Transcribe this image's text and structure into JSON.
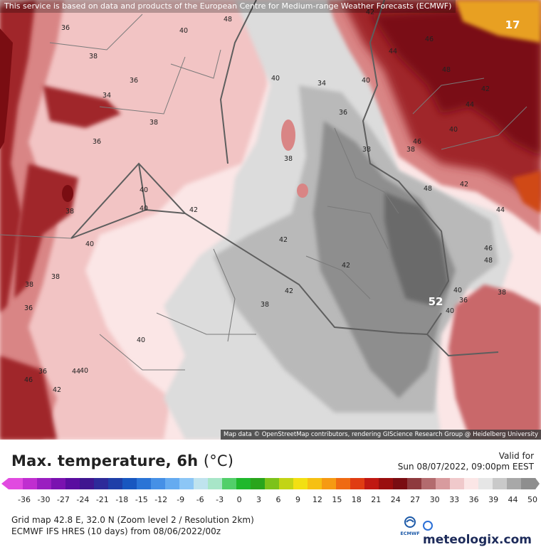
{
  "attribution_top": "This service is based on data and products of the European Centre for Medium-range Weather Forecasts (ECMWF)",
  "attribution_bottom": "Map data © OpenStreetMap contributors, rendering GIScience Research Group @ Heidelberg University",
  "title": "Max. temperature, 6h",
  "unit": "(°C)",
  "valid_label": "Valid for",
  "valid_time": "Sun 08/07/2022, 09:00pm EEST",
  "grid_info": "Grid map 42.8 E, 32.0 N (Zoom level 2 / Resolution 2km)",
  "model_info": "ECMWF IFS HRES (10 days) from 08/06/2022/00z",
  "ecmwf_logo": "ECMWF",
  "brand": "meteologix.com",
  "map": {
    "max_value_label": "52",
    "corner_value_label": "17",
    "isotherm_labels": [
      "36",
      "40",
      "38",
      "36",
      "34",
      "38",
      "36",
      "38",
      "40",
      "40",
      "42",
      "38",
      "36",
      "40",
      "38",
      "36",
      "40",
      "42",
      "44",
      "46",
      "48",
      "40",
      "34",
      "36",
      "38",
      "40",
      "42",
      "44",
      "46",
      "48",
      "44",
      "42",
      "46",
      "48",
      "38",
      "40",
      "42",
      "44",
      "46",
      "48",
      "38",
      "40",
      "36",
      "40",
      "42",
      "38",
      "40",
      "42",
      "42",
      "38"
    ]
  },
  "colors": {
    "deep_red": "#7a0d12",
    "red": "#a0282a",
    "salmon": "#d98585",
    "pink": "#f2c4c4",
    "pale_pink": "#fbe6e6",
    "gray_light": "#dcdcdc",
    "gray": "#b9b9b9",
    "gray_dark": "#8e8e8e",
    "gray_darker": "#6a6a6a",
    "border": "#5e5e5e"
  },
  "scale": {
    "ticks": [
      "-36",
      "-30",
      "-27",
      "-24",
      "-21",
      "-18",
      "-15",
      "-12",
      "-9",
      "-6",
      "-3",
      "0",
      "3",
      "6",
      "9",
      "12",
      "15",
      "18",
      "21",
      "24",
      "27",
      "30",
      "33",
      "36",
      "39",
      "44",
      "50"
    ],
    "colors": [
      "#e14ae0",
      "#c02ed0",
      "#9a1ec0",
      "#7a12b0",
      "#5a0da0",
      "#3f1690",
      "#2d2a9a",
      "#1e3fa8",
      "#1857c0",
      "#2a74d6",
      "#4590e6",
      "#65abf0",
      "#8cc6f6",
      "#bfe3ee",
      "#a8e6c8",
      "#52cf6a",
      "#1fb82c",
      "#29a51c",
      "#7cc21a",
      "#c2d415",
      "#f2e012",
      "#f6c012",
      "#f69a12",
      "#ef6a12",
      "#e03c12",
      "#c01812",
      "#9a0e0e",
      "#7a0d12",
      "#8e3a3e",
      "#b36b6e",
      "#d89b9e",
      "#f0c9cb",
      "#fbe6e6",
      "#e6e6e6",
      "#c9c9c9",
      "#a8a8a8",
      "#8e8e8e"
    ]
  }
}
